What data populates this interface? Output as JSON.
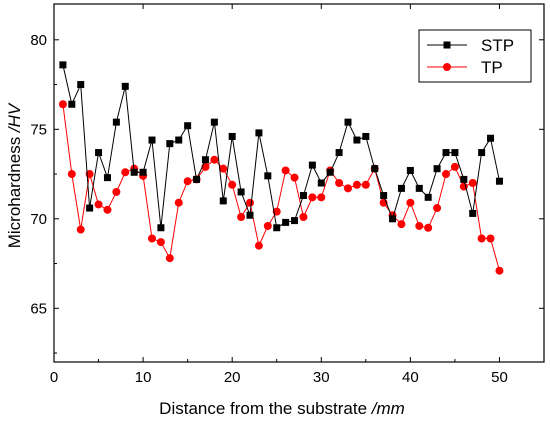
{
  "chart_data": {
    "type": "line",
    "title": "",
    "xlabel": {
      "main": "Distance from the substrate ",
      "unit": "/mm"
    },
    "ylabel": {
      "main": "Microhardness ",
      "unit": "/HV"
    },
    "xlim": [
      0,
      55
    ],
    "ylim": [
      62,
      82
    ],
    "xticks": [
      0,
      10,
      20,
      30,
      40,
      50
    ],
    "yticks": [
      65,
      70,
      75,
      80
    ],
    "grid": false,
    "legend_position": "top-right",
    "x": [
      1,
      2,
      3,
      4,
      5,
      6,
      7,
      8,
      9,
      10,
      11,
      12,
      13,
      14,
      15,
      16,
      17,
      18,
      19,
      20,
      21,
      22,
      23,
      24,
      25,
      26,
      27,
      28,
      29,
      30,
      31,
      32,
      33,
      34,
      35,
      36,
      37,
      38,
      39,
      40,
      41,
      42,
      43,
      44,
      45,
      46,
      47,
      48,
      49,
      50
    ],
    "series": [
      {
        "name": "STP",
        "color": "#000000",
        "marker": "square",
        "values": [
          78.6,
          76.4,
          77.5,
          70.6,
          73.7,
          72.3,
          75.4,
          77.4,
          72.6,
          72.6,
          74.4,
          69.5,
          74.2,
          74.4,
          75.2,
          72.2,
          73.3,
          75.4,
          71.0,
          74.6,
          71.5,
          70.2,
          74.8,
          72.4,
          69.5,
          69.8,
          69.9,
          71.3,
          73.0,
          72.0,
          72.6,
          73.7,
          75.4,
          74.4,
          74.6,
          72.8,
          71.3,
          70.0,
          71.7,
          72.7,
          71.7,
          71.2,
          72.8,
          73.7,
          73.7,
          72.2,
          70.3,
          73.7,
          74.5,
          72.1
        ]
      },
      {
        "name": "TP",
        "color": "#ff0000",
        "marker": "circle",
        "values": [
          76.4,
          72.5,
          69.4,
          72.5,
          70.8,
          70.5,
          71.5,
          72.6,
          72.8,
          72.4,
          68.9,
          68.7,
          67.8,
          70.9,
          72.1,
          72.2,
          72.9,
          73.3,
          72.8,
          71.9,
          70.1,
          70.9,
          68.5,
          69.6,
          70.4,
          72.7,
          72.3,
          70.1,
          71.2,
          71.2,
          72.7,
          72.0,
          71.7,
          71.9,
          71.9,
          72.8,
          70.9,
          70.2,
          69.7,
          70.9,
          69.6,
          69.5,
          70.6,
          72.5,
          72.9,
          71.8,
          72.0,
          68.9,
          68.9,
          67.1
        ]
      }
    ]
  }
}
